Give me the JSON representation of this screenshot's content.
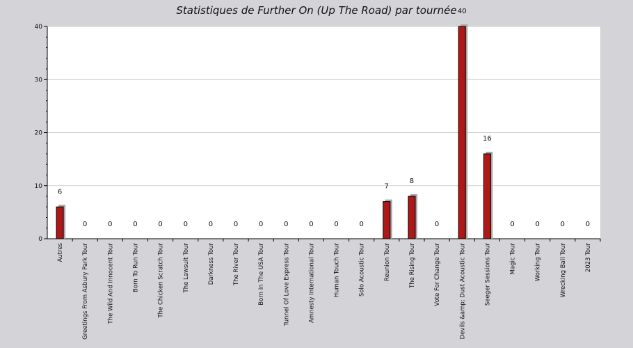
{
  "chart_data": {
    "type": "bar",
    "title": "Statistiques de Further On (Up The Road) par tournée",
    "xlabel": "",
    "ylabel": "",
    "ylim": [
      0,
      40
    ],
    "yticks": [
      0,
      10,
      20,
      30,
      40
    ],
    "grid": true,
    "categories": [
      "Autres",
      "Greetings From Asbury Park Tour",
      "The Wild And Innocent Tour",
      "Born To Run Tour",
      "The Chicken Scratch Tour",
      "The Lawsuit Tour",
      "Darkness Tour",
      "The River Tour",
      "Born In The USA Tour",
      "Tunnel Of Love Express Tour",
      "Amnesty International Tour",
      "Human Touch Tour",
      "Solo Acoustic Tour",
      "Reunion Tour",
      "The Rising Tour",
      "Vote For Change Tour",
      "Devils &amp; Dust Acoustic Tour",
      "Seeger Sessions Tour",
      "Magic Tour",
      "Working Tour",
      "Wrecking Ball Tour",
      "2023 Tour"
    ],
    "values": [
      6,
      0,
      0,
      0,
      0,
      0,
      0,
      0,
      0,
      0,
      0,
      0,
      0,
      7,
      8,
      0,
      40,
      16,
      0,
      0,
      0,
      0
    ],
    "colors": {
      "bar": "#b01818",
      "bar_shadow": "#a8a8a8",
      "plot_bg": "#ffffff",
      "page_bg": "#d4d4d8",
      "grid": "#cfcfcf"
    }
  }
}
